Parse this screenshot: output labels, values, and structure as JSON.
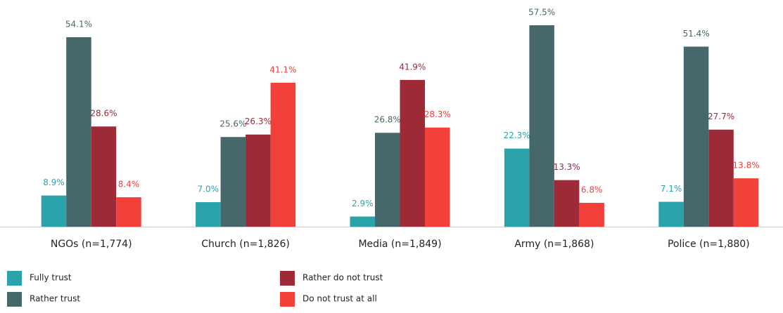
{
  "chart_data": {
    "type": "bar",
    "categories": [
      "NGOs (n=1,774)",
      "Church (n=1,826)",
      "Media (n=1,849)",
      "Army (n=1,868)",
      "Police (n=1,880)"
    ],
    "series": [
      {
        "name": "Fully trust",
        "color": "#2ba3aa",
        "values": [
          8.9,
          7.0,
          2.9,
          22.3,
          7.1
        ],
        "value_labels": [
          "8.9%",
          "7.0%",
          "2.9%",
          "22.3%",
          "7.1%"
        ]
      },
      {
        "name": "Rather trust",
        "color": "#47686b",
        "values": [
          54.1,
          25.6,
          26.8,
          57.5,
          51.4
        ],
        "value_labels": [
          "54.1%",
          "25.6%",
          "26.8%",
          "57.5%",
          "51.4%"
        ]
      },
      {
        "name": "Rather do not trust",
        "color": "#9e2a37",
        "values": [
          28.6,
          26.3,
          41.9,
          13.3,
          27.7
        ],
        "value_labels": [
          "28.6%",
          "26.3%",
          "41.9%",
          "13.3%",
          "27.7%"
        ]
      },
      {
        "name": "Do not trust at all",
        "color": "#f2403a",
        "values": [
          8.4,
          41.1,
          28.3,
          6.8,
          13.8
        ],
        "value_labels": [
          "8.4%",
          "41.1%",
          "28.3%",
          "6.8%",
          "13.8%"
        ]
      }
    ]
  }
}
